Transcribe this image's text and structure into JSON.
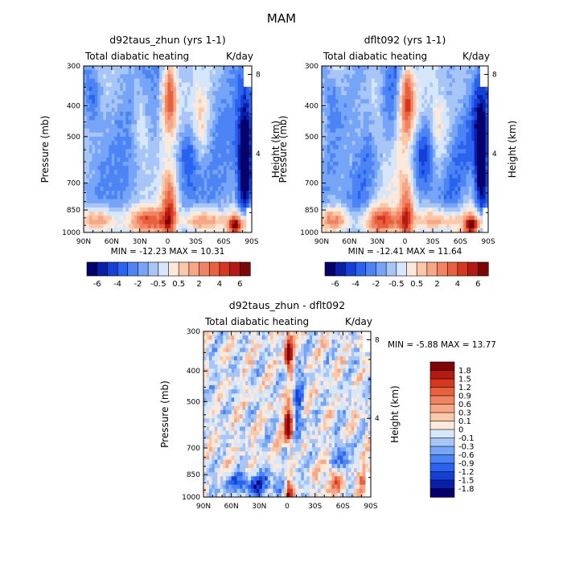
{
  "page_title": "MAM",
  "colors": {
    "levels": [
      "#07006b",
      "#0a1ea8",
      "#1540d6",
      "#2a63f0",
      "#4c84f5",
      "#76a4f7",
      "#a7c6f7",
      "#d6e6fb",
      "#fde9d9",
      "#fac8a8",
      "#f7a686",
      "#f08462",
      "#e8613e",
      "#d5371f",
      "#b51a12",
      "#7e0606"
    ]
  },
  "chart_data": [
    {
      "id": "panel-left",
      "type": "heatmap",
      "title": "d92taus_zhun (yrs 1-1)",
      "left_subtitle": "Total diabatic heating",
      "right_subtitle": "K/day",
      "xlabel": "",
      "ylabel": "Pressure (mb)",
      "ylabel_right": "Height (km)",
      "x_ticks": [
        "90N",
        "60N",
        "30N",
        "0",
        "30S",
        "60S",
        "90S"
      ],
      "y_ticks": [
        "300",
        "400",
        "500",
        "700",
        "850",
        "1000"
      ],
      "y_ticks_right": [
        "8",
        "4"
      ],
      "xlim": [
        90,
        -90
      ],
      "ylim": [
        1000,
        300
      ],
      "stats": "MIN = -12.23   MAX = 10.31",
      "min": -12.23,
      "max": 10.31,
      "colorbar_labels": [
        "-6",
        "-4",
        "-2",
        "-0.5",
        "0.5",
        "2",
        "4",
        "6"
      ]
    },
    {
      "id": "panel-right",
      "type": "heatmap",
      "title": "dflt092 (yrs 1-1)",
      "left_subtitle": "Total diabatic heating",
      "right_subtitle": "K/day",
      "xlabel": "",
      "ylabel": "Pressure (mb)",
      "ylabel_right": "Height (km)",
      "x_ticks": [
        "90N",
        "60N",
        "30N",
        "0",
        "30S",
        "60S",
        "90S"
      ],
      "y_ticks": [
        "300",
        "400",
        "500",
        "700",
        "850",
        "1000"
      ],
      "y_ticks_right": [
        "8",
        "4"
      ],
      "xlim": [
        90,
        -90
      ],
      "ylim": [
        1000,
        300
      ],
      "stats": "MIN = -12.41   MAX = 11.64",
      "min": -12.41,
      "max": 11.64,
      "colorbar_labels": [
        "-6",
        "-4",
        "-2",
        "-0.5",
        "0.5",
        "2",
        "4",
        "6"
      ]
    },
    {
      "id": "panel-diff",
      "type": "heatmap",
      "title": "d92taus_zhun - dflt092",
      "left_subtitle": "Total diabatic heating",
      "right_subtitle": "K/day",
      "xlabel": "",
      "ylabel": "Pressure (mb)",
      "ylabel_right": "Height (km)",
      "x_ticks": [
        "90N",
        "60N",
        "30N",
        "0",
        "30S",
        "60S",
        "90S"
      ],
      "y_ticks": [
        "300",
        "400",
        "500",
        "700",
        "850",
        "1000"
      ],
      "y_ticks_right": [
        "8",
        "4"
      ],
      "xlim": [
        90,
        -90
      ],
      "ylim": [
        1000,
        300
      ],
      "stats": "MIN =   -5.88   MAX =  13.77",
      "min": -5.88,
      "max": 13.77,
      "colorbar_labels": [
        "1.8",
        "1.5",
        "1.2",
        "0.9",
        "0.6",
        "0.3",
        "0.1",
        "0",
        "-0.1",
        "-0.3",
        "-0.6",
        "-0.9",
        "-1.2",
        "-1.5",
        "-1.8"
      ]
    }
  ]
}
